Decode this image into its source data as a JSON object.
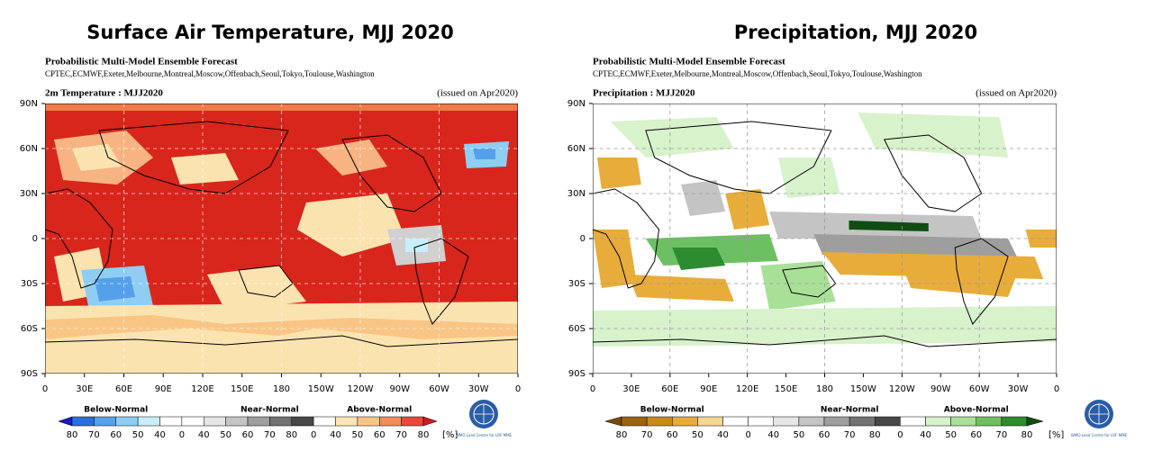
{
  "panels": [
    {
      "title": "Surface Air Temperature, MJJ 2020",
      "heading": "Probabilistic Multi-Model Ensemble Forecast",
      "centres": "CPTEC,ECMWF,Exeter,Melbourne,Montreal,Moscow,Offenbach,Seoul,Tokyo,Toulouse,Washington",
      "map_title": "2m Temperature : MJJ2020",
      "issued": "(issued on Apr2020)",
      "lat_labels": [
        "90N",
        "60N",
        "30N",
        "0",
        "30S",
        "60S",
        "90S"
      ],
      "lon_labels": [
        "0",
        "30E",
        "60E",
        "90E",
        "120E",
        "150E",
        "180",
        "150W",
        "120W",
        "90W",
        "60W",
        "30W",
        "0"
      ],
      "legend": {
        "groups": [
          "Below-Normal",
          "Near-Normal",
          "Above-Normal"
        ],
        "labels": [
          "80",
          "70",
          "60",
          "50",
          "40",
          "0",
          "40",
          "50",
          "60",
          "70",
          "80",
          "0",
          "40",
          "50",
          "60",
          "70",
          "80"
        ],
        "unit": "[%]",
        "colors": [
          "#1a1acc",
          "#2a6fdc",
          "#55a0ea",
          "#8fcdf2",
          "#c9eefb",
          "#ffffff",
          "#ffffff",
          "#e6e6e6",
          "#c4c4c4",
          "#9e9e9e",
          "#727272",
          "#474747",
          "#ffffff",
          "#fde6b6",
          "#f9c585",
          "#f28c5a",
          "#e8483a",
          "#d6191b"
        ]
      },
      "logo_text": "WMO Lead Centre for LRF MME"
    },
    {
      "title": "Precipitation, MJJ 2020",
      "heading": "Probabilistic Multi-Model Ensemble Forecast",
      "centres": "CPTEC,ECMWF,Exeter,Melbourne,Montreal,Moscow,Offenbach,Seoul,Tokyo,Toulouse,Washington",
      "map_title": "Precipitation : MJJ2020",
      "issued": "(issued on Apr2020)",
      "lat_labels": [
        "90N",
        "60N",
        "30N",
        "0",
        "30S",
        "60S",
        "90S"
      ],
      "lon_labels": [
        "0",
        "30E",
        "60E",
        "90E",
        "120E",
        "150E",
        "180",
        "150W",
        "120W",
        "90W",
        "60W",
        "30W",
        "0"
      ],
      "legend": {
        "groups": [
          "Below-Normal",
          "Near-Normal",
          "Above-Normal"
        ],
        "labels": [
          "80",
          "70",
          "60",
          "50",
          "40",
          "0",
          "40",
          "50",
          "60",
          "70",
          "80",
          "0",
          "40",
          "50",
          "60",
          "70",
          "80"
        ],
        "unit": "[%]",
        "colors": [
          "#7a4a0a",
          "#9c6410",
          "#c98a1c",
          "#e8ac3a",
          "#f6d590",
          "#ffffff",
          "#ffffff",
          "#e6e6e6",
          "#c4c4c4",
          "#9e9e9e",
          "#727272",
          "#474747",
          "#ffffff",
          "#d8f2cc",
          "#a8e098",
          "#6cc062",
          "#2e8c30",
          "#0f4d12"
        ]
      },
      "logo_text": "WMO Lead Centre for LRF MME"
    }
  ]
}
